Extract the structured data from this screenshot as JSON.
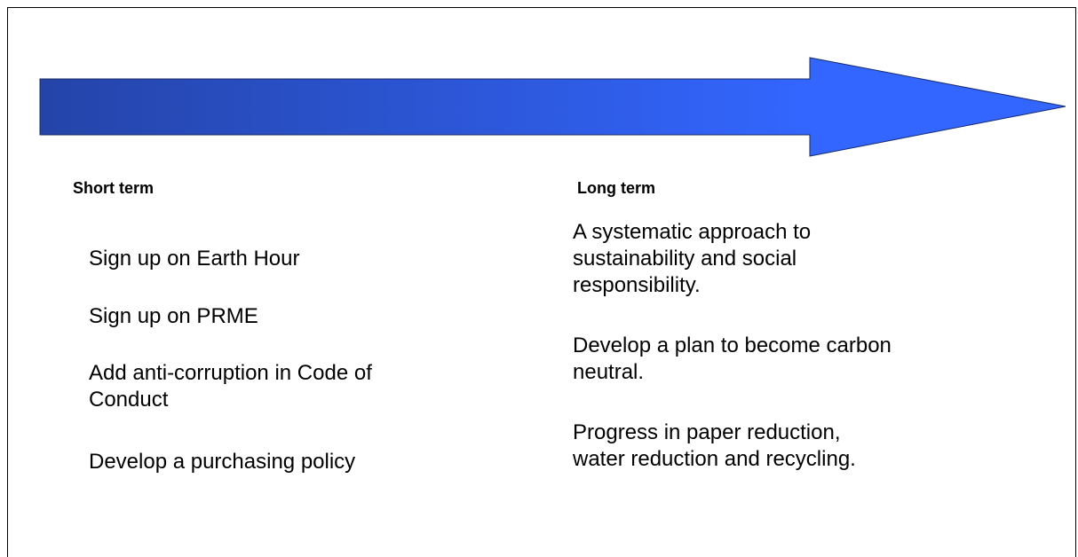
{
  "columns": [
    {
      "header": "Short term",
      "items": [
        {
          "lines": [
            "Sign up on Earth Hour"
          ]
        },
        {
          "lines": [
            "Sign up on PRME"
          ]
        },
        {
          "lines": [
            "Add anti-corruption in Code of",
            "Conduct"
          ]
        },
        {
          "lines": [
            "Develop a purchasing policy"
          ]
        }
      ]
    },
    {
      "header": "Long term",
      "items": [
        {
          "lines": [
            "A systematic approach to",
            "sustainability and social",
            "responsibility."
          ]
        },
        {
          "lines": [
            "Develop a plan to become carbon",
            "neutral."
          ]
        },
        {
          "lines": [
            "Progress in paper reduction,",
            "water reduction and recycling."
          ]
        }
      ]
    }
  ]
}
